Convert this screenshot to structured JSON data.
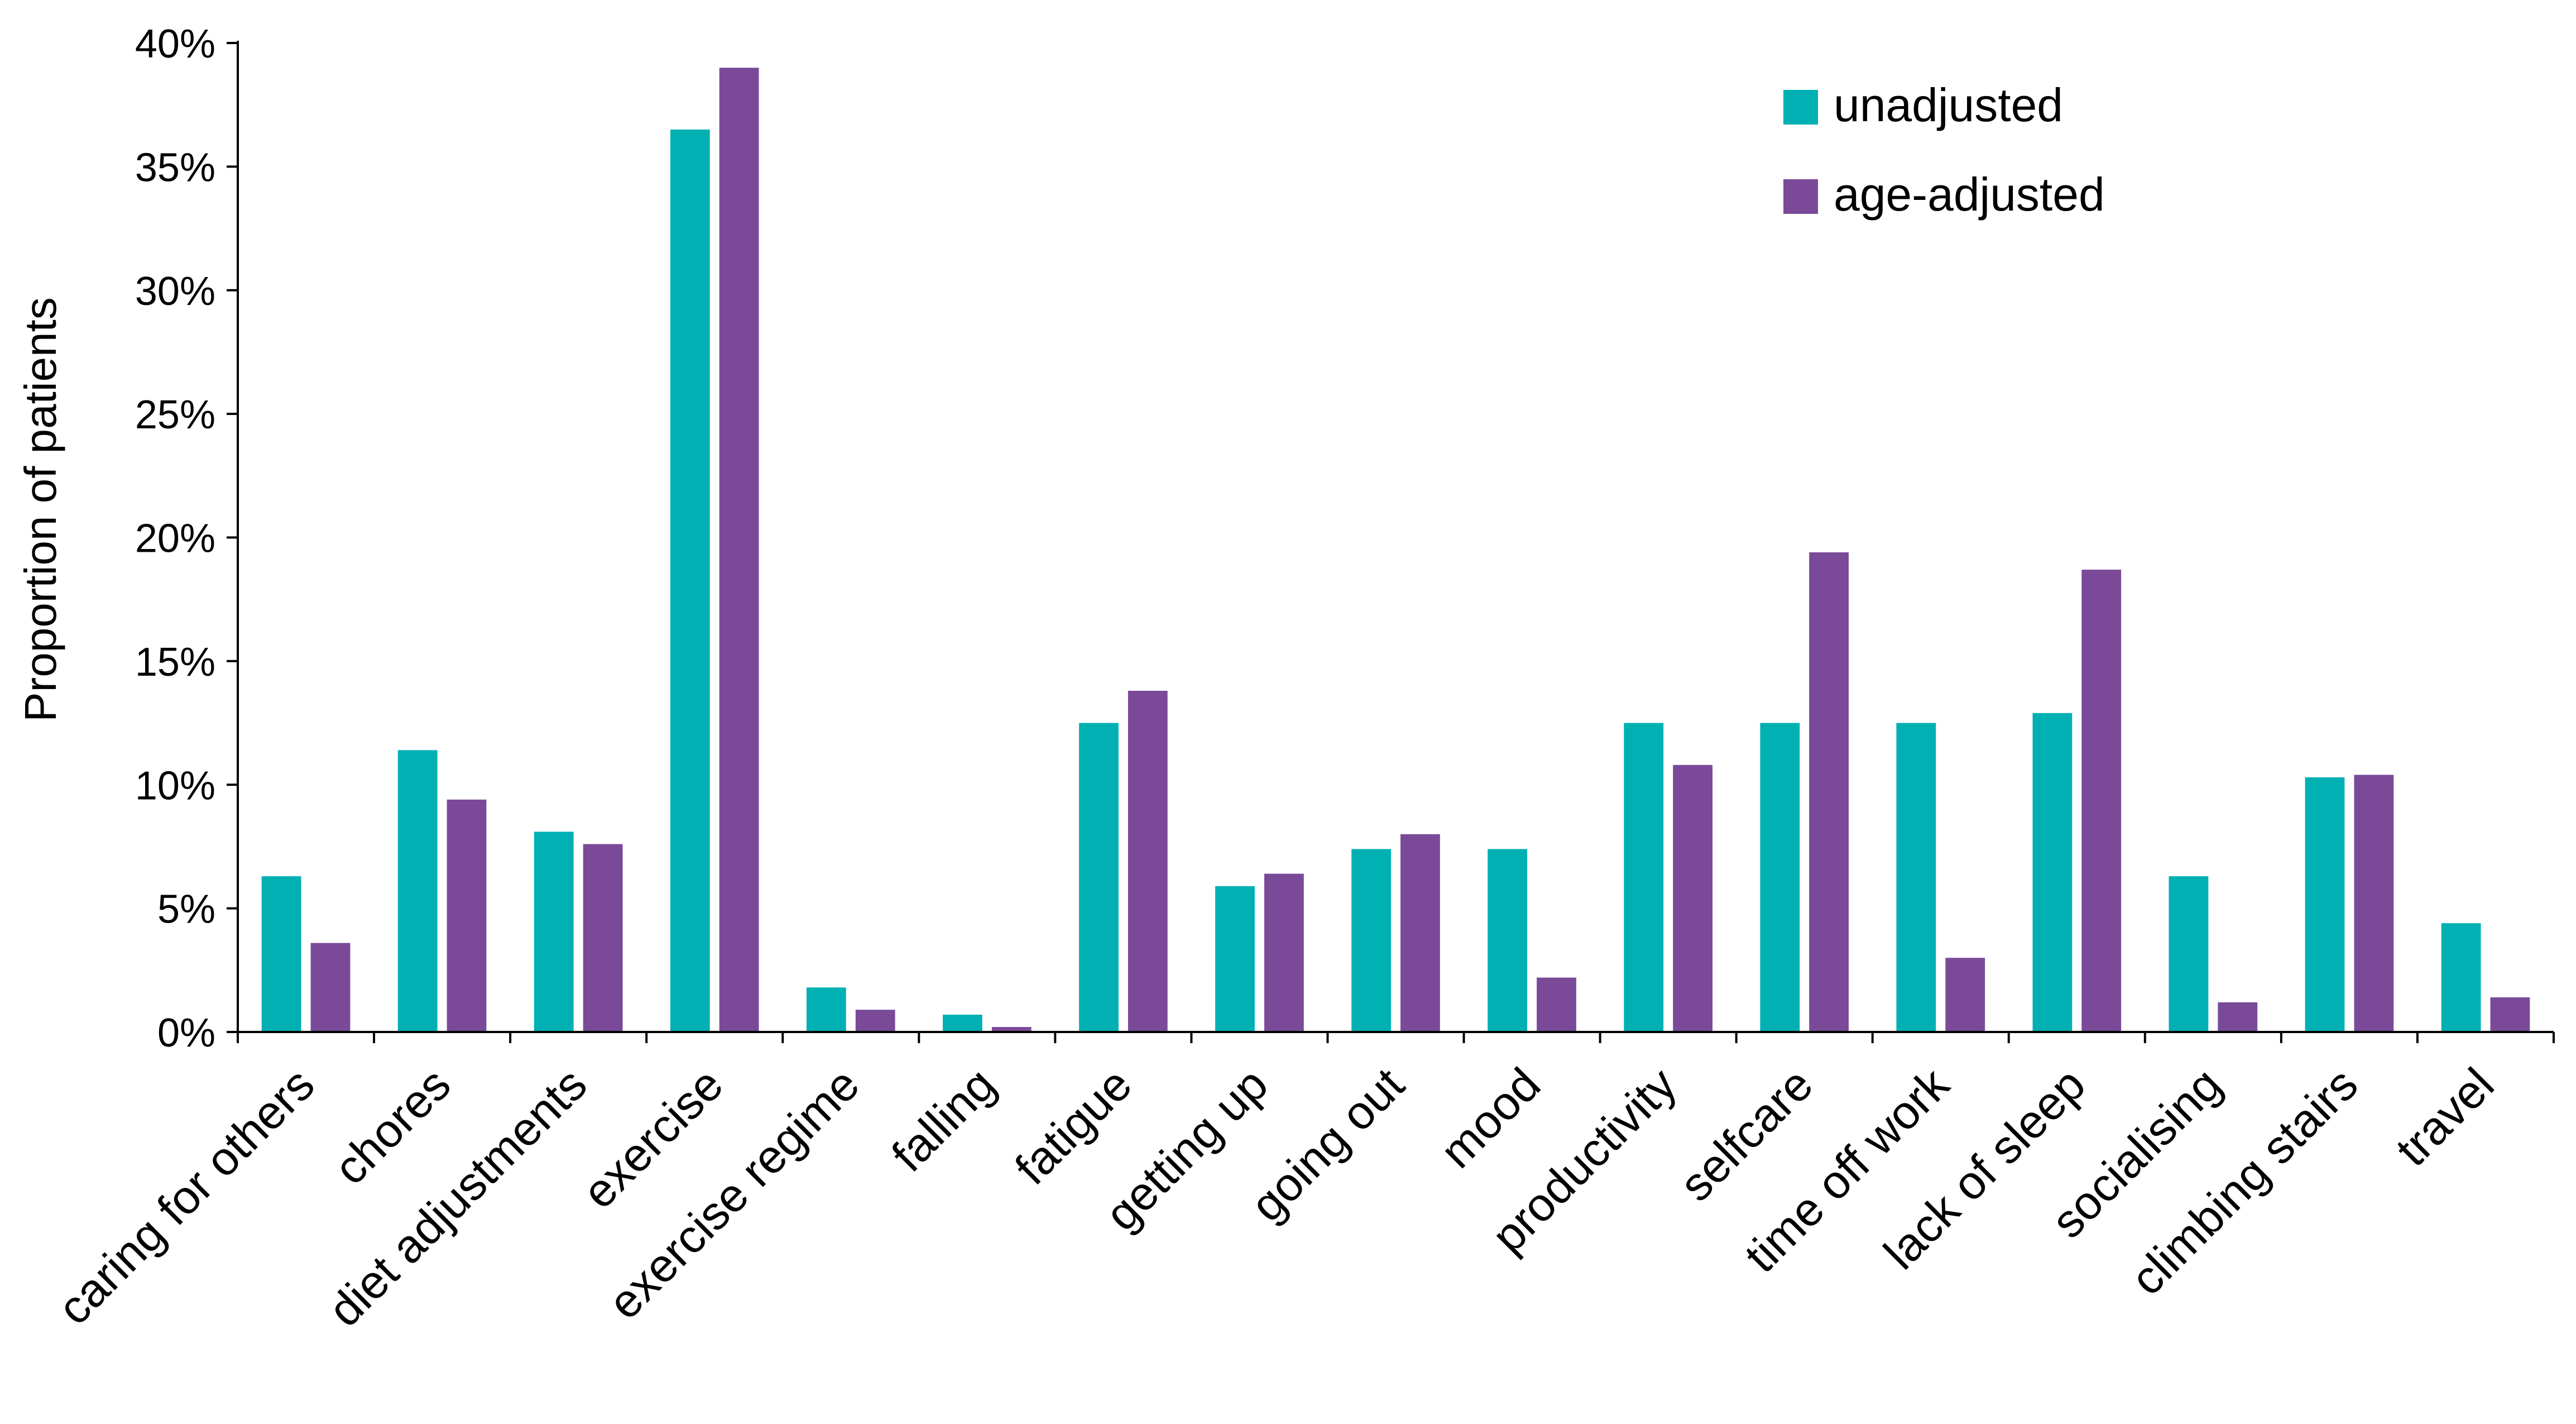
{
  "chart_data": {
    "type": "bar",
    "title": "",
    "xlabel": "",
    "ylabel": "Proportion of patients",
    "ylim": [
      0,
      40
    ],
    "yticks": [
      0,
      5,
      10,
      15,
      20,
      25,
      30,
      35,
      40
    ],
    "ytick_labels": [
      "0%",
      "5%",
      "10%",
      "15%",
      "20%",
      "25%",
      "30%",
      "35%",
      "40%"
    ],
    "y_unit": "%",
    "grid": false,
    "legend_position": "top-right",
    "categories": [
      "caring for others",
      "chores",
      "diet adjustments",
      "exercise",
      "exercise regime",
      "falling",
      "fatigue",
      "getting up",
      "going out",
      "mood",
      "productivity",
      "selfcare",
      "time off work",
      "lack of sleep",
      "socialising",
      "climbing stairs",
      "travel"
    ],
    "series": [
      {
        "name": "unadjusted",
        "color": "#00B0B3",
        "values": [
          6.3,
          11.4,
          8.1,
          36.5,
          1.8,
          0.7,
          12.5,
          5.9,
          7.4,
          7.4,
          12.5,
          12.5,
          12.5,
          12.9,
          6.3,
          10.3,
          4.4
        ]
      },
      {
        "name": "age-adjusted",
        "color": "#7A4A99",
        "values": [
          3.6,
          9.4,
          7.6,
          39.0,
          0.9,
          0.2,
          13.8,
          6.4,
          8.0,
          2.2,
          10.8,
          19.4,
          3.0,
          18.7,
          1.2,
          10.4,
          1.4
        ]
      }
    ]
  }
}
